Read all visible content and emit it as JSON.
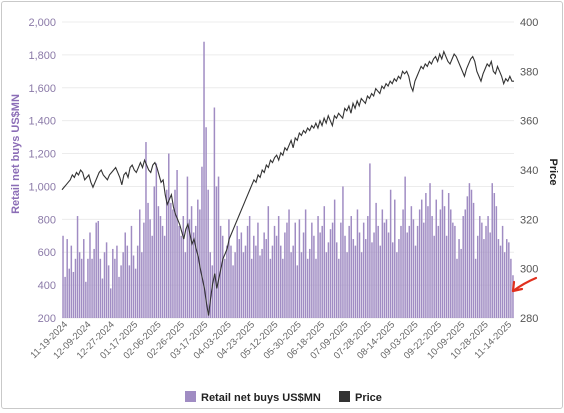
{
  "chart_data": {
    "type": "bar+line",
    "title": "",
    "ylabel_left": "Retail net buys US$MN",
    "ylabel_right": "Price",
    "ylim_left": [
      200,
      2000
    ],
    "ylim_right": [
      280,
      400
    ],
    "yticks_left": [
      "200",
      "400",
      "600",
      "800",
      "1,000",
      "1,200",
      "1,400",
      "1,600",
      "1,800",
      "2,000"
    ],
    "yticks_right": [
      "280",
      "300",
      "320",
      "340",
      "360",
      "380",
      "400"
    ],
    "xticks": [
      "11-19-2024",
      "12-09-2024",
      "12-27-2024",
      "01-17-2025",
      "02-06-2025",
      "02-26-2025",
      "03-17-2025",
      "04-03-2025",
      "04-23-2025",
      "05-12-2025",
      "05-30-2025",
      "06-18-2025",
      "07-09-2025",
      "07-28-2025",
      "08-14-2025",
      "09-03-2025",
      "09-22-2025",
      "10-09-2025",
      "10-28-2025",
      "11-14-2025"
    ],
    "grid": true,
    "legend_position": "bottom",
    "series": [
      {
        "name": "Retail net buys US$MN",
        "type": "bar",
        "axis": "left",
        "color": "#a08cc3",
        "values": [
          700,
          450,
          680,
          500,
          640,
          480,
          560,
          820,
          600,
          560,
          680,
          420,
          560,
          720,
          560,
          620,
          780,
          790,
          560,
          440,
          600,
          660,
          520,
          380,
          620,
          560,
          640,
          450,
          520,
          600,
          720,
          640,
          520,
          760,
          580,
          500,
          640,
          860,
          600,
          780,
          1270,
          900,
          800,
          700,
          1000,
          1140,
          880,
          820,
          760,
          700,
          980,
          1200,
          900,
          860,
          980,
          1100,
          760,
          700,
          820,
          600,
          1060,
          800,
          880,
          720,
          760,
          920,
          860,
          1120,
          1880,
          1360,
          980,
          600,
          520,
          1480,
          1000,
          1060,
          760,
          700,
          560,
          640,
          800,
          640,
          520,
          600,
          760,
          680,
          720,
          600,
          640,
          760,
          820,
          560,
          700,
          640,
          780,
          580,
          620,
          720,
          680,
          880,
          560,
          640,
          760,
          700,
          820,
          640,
          560,
          720,
          780,
          860,
          600,
          640,
          780,
          520,
          800,
          600,
          720,
          860,
          560,
          620,
          780,
          700,
          560,
          820,
          720,
          760,
          880,
          600,
          660,
          740,
          780,
          920,
          660,
          560,
          780,
          1000,
          700,
          600,
          760,
          820,
          680,
          640,
          860,
          720,
          600,
          780,
          680,
          820,
          1140,
          660,
          720,
          900,
          760,
          640,
          860,
          780,
          800,
          720,
          980,
          660,
          920,
          600,
          680,
          760,
          860,
          1060,
          720,
          760,
          880,
          800,
          640,
          760,
          860,
          920,
          780,
          960,
          880,
          1020,
          820,
          700,
          920,
          760,
          860,
          980,
          880,
          700,
          960,
          860,
          780,
          760,
          560,
          680,
          620,
          820,
          860,
          940,
          1020,
          980,
          900,
          560,
          700,
          820,
          780,
          680,
          760,
          820,
          720,
          1020,
          960,
          880,
          680,
          640,
          760,
          600,
          680,
          660,
          560,
          460
        ]
      },
      {
        "name": "Price",
        "type": "line",
        "axis": "right",
        "color": "#333333",
        "values": [
          332,
          333,
          334,
          335,
          336,
          338,
          337,
          339,
          338,
          340,
          339,
          336,
          337,
          338,
          335,
          333,
          335,
          337,
          339,
          340,
          338,
          337,
          336,
          338,
          339,
          340,
          341,
          339,
          337,
          334,
          338,
          339,
          337,
          341,
          342,
          340,
          339,
          341,
          343,
          341,
          344,
          342,
          340,
          339,
          342,
          343,
          341,
          338,
          335,
          336,
          330,
          326,
          328,
          330,
          325,
          322,
          320,
          318,
          315,
          312,
          316,
          318,
          314,
          310,
          312,
          308,
          305,
          300,
          296,
          292,
          286,
          281,
          288,
          294,
          298,
          292,
          296,
          300,
          304,
          306,
          308,
          312,
          314,
          316,
          318,
          320,
          322,
          324,
          326,
          328,
          330,
          332,
          334,
          336,
          335,
          338,
          337,
          340,
          339,
          342,
          341,
          344,
          343,
          345,
          346,
          344,
          347,
          346,
          349,
          348,
          350,
          352,
          349,
          353,
          352,
          355,
          354,
          356,
          355,
          357,
          356,
          358,
          357,
          359,
          357,
          360,
          358,
          361,
          359,
          362,
          360,
          358,
          362,
          361,
          363,
          362,
          361,
          365,
          364,
          366,
          363,
          367,
          365,
          368,
          366,
          369,
          368,
          367,
          370,
          369,
          371,
          370,
          373,
          372,
          371,
          374,
          373,
          375,
          374,
          376,
          375,
          377,
          376,
          378,
          377,
          380,
          379,
          380,
          378,
          374,
          372,
          376,
          378,
          380,
          382,
          381,
          383,
          382,
          384,
          383,
          385,
          386,
          384,
          387,
          385,
          388,
          386,
          384,
          383,
          385,
          387,
          386,
          384,
          382,
          380,
          378,
          381,
          383,
          385,
          386,
          384,
          380,
          378,
          376,
          379,
          381,
          383,
          382,
          384,
          380,
          379,
          382,
          380,
          378,
          375,
          377,
          376,
          378,
          376,
          376
        ]
      }
    ],
    "annotation": "red arrow pointing to final data point"
  },
  "legend": {
    "item1": "Retail net buys US$MN",
    "item2": "Price"
  }
}
